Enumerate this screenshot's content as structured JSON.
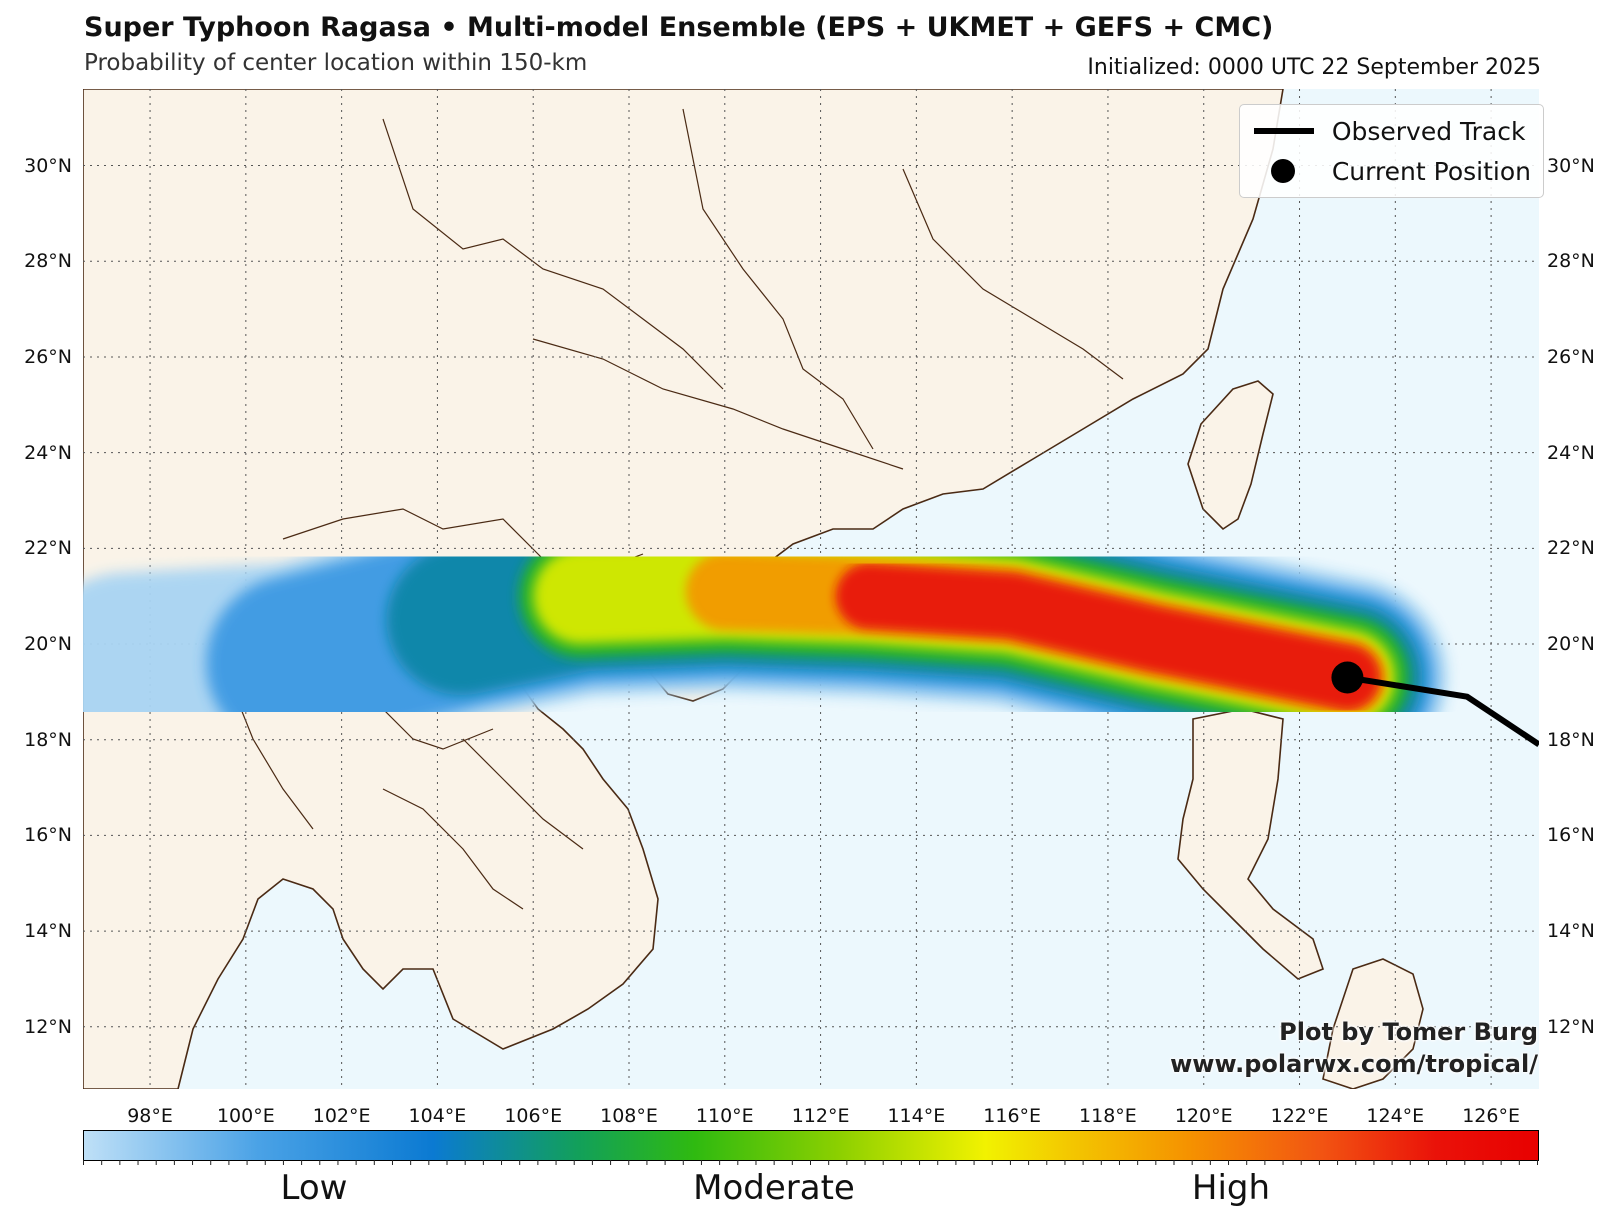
{
  "header": {
    "title": "Super Typhoon Ragasa • Multi-model Ensemble (EPS + UKMET + GEFS + CMC)",
    "subtitle": "Probability of center location within 150-km",
    "initialized": "Initialized: 0000 UTC 22 September 2025"
  },
  "map": {
    "extent": {
      "lon_min": 96.6,
      "lon_max": 127.0,
      "lat_min": 10.7,
      "lat_max": 31.6
    },
    "gridlines": true,
    "lon_ticks": [
      98,
      100,
      102,
      104,
      106,
      108,
      110,
      112,
      114,
      116,
      118,
      120,
      122,
      124,
      126
    ],
    "lon_labels": [
      "98°E",
      "100°E",
      "102°E",
      "104°E",
      "106°E",
      "108°E",
      "110°E",
      "112°E",
      "114°E",
      "116°E",
      "118°E",
      "120°E",
      "122°E",
      "124°E",
      "126°E"
    ],
    "lat_ticks": [
      30,
      28,
      26,
      24,
      22,
      20,
      18,
      16,
      14,
      12
    ],
    "lat_labels": [
      "30°N",
      "28°N",
      "26°N",
      "24°N",
      "22°N",
      "20°N",
      "18°N",
      "16°N",
      "14°N",
      "12°N"
    ],
    "colors": {
      "land": "#faf3e8",
      "ocean": "#ecf8fd",
      "border": "#4a2a14",
      "track": "#000000"
    }
  },
  "storm": {
    "observed_track": [
      [
        127.0,
        17.9
      ],
      [
        125.5,
        18.9
      ],
      [
        123.0,
        19.3
      ]
    ],
    "current_position": [
      123.0,
      19.3
    ],
    "probability_corridor": [
      [
        97.5,
        19.4
      ],
      [
        101,
        19.6
      ],
      [
        104.5,
        20.5
      ],
      [
        107,
        21.0
      ],
      [
        110,
        21.1
      ],
      [
        113,
        21.0
      ],
      [
        116,
        20.8
      ],
      [
        119,
        20.1
      ],
      [
        121.5,
        19.6
      ],
      [
        123,
        19.3
      ]
    ]
  },
  "legend": {
    "items": [
      {
        "label": "Observed Track",
        "symbol": "line"
      },
      {
        "label": "Current Position",
        "symbol": "dot"
      }
    ]
  },
  "credit": {
    "line1": "Plot by Tomer Burg",
    "line2": "www.polarwx.com/tropical/"
  },
  "colorbar": {
    "labels": [
      "Low",
      "Moderate",
      "High"
    ]
  }
}
